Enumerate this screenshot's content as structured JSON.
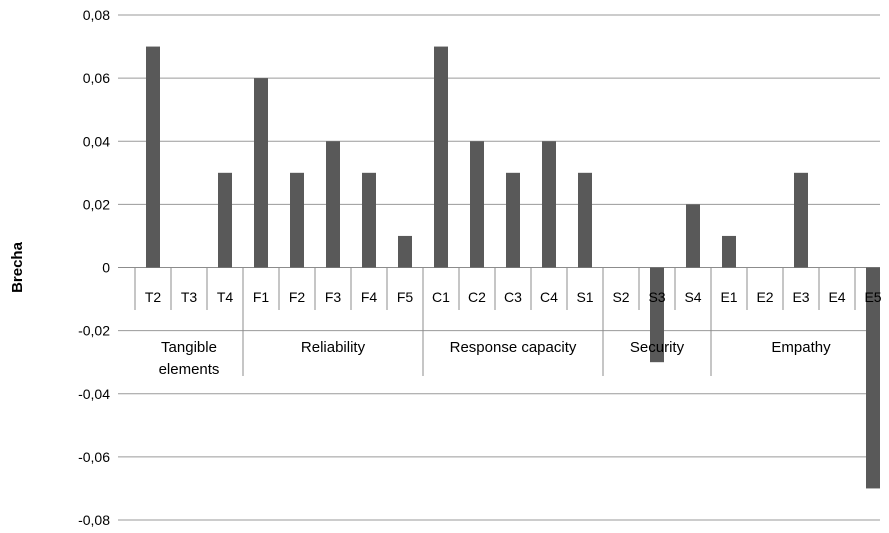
{
  "chart_data": {
    "type": "bar",
    "ylabel": "Brecha",
    "ylim": [
      -0.08,
      0.08
    ],
    "yticks": [
      "0,08",
      "0,06",
      "0,04",
      "0,02",
      "0",
      "-0,02",
      "-0,04",
      "-0,06",
      "-0,08"
    ],
    "ytick_values": [
      0.08,
      0.06,
      0.04,
      0.02,
      0,
      -0.02,
      -0.04,
      -0.06,
      -0.08
    ],
    "grid": true,
    "bar_color": "#595959",
    "categories": [
      "T2",
      "T3",
      "T4",
      "F1",
      "F2",
      "F3",
      "F4",
      "F5",
      "C1",
      "C2",
      "C3",
      "C4",
      "S1",
      "S2",
      "S3",
      "S4",
      "E1",
      "E2",
      "E3",
      "E4",
      "E5"
    ],
    "values": [
      0.07,
      0,
      0.03,
      0.06,
      0.03,
      0.04,
      0.03,
      0.01,
      0.07,
      0.04,
      0.03,
      0.04,
      0.03,
      0,
      -0.03,
      0.02,
      0.01,
      0,
      0.03,
      0,
      -0.07
    ],
    "groups": [
      {
        "label_lines": [
          "Tangible",
          "elements"
        ],
        "start": 0,
        "end": 2
      },
      {
        "label_lines": [
          "Reliability"
        ],
        "start": 3,
        "end": 7
      },
      {
        "label_lines": [
          "Response capacity"
        ],
        "start": 8,
        "end": 12
      },
      {
        "label_lines": [
          "Security"
        ],
        "start": 13,
        "end": 15
      },
      {
        "label_lines": [
          "Empathy"
        ],
        "start": 16,
        "end": 20
      }
    ]
  }
}
